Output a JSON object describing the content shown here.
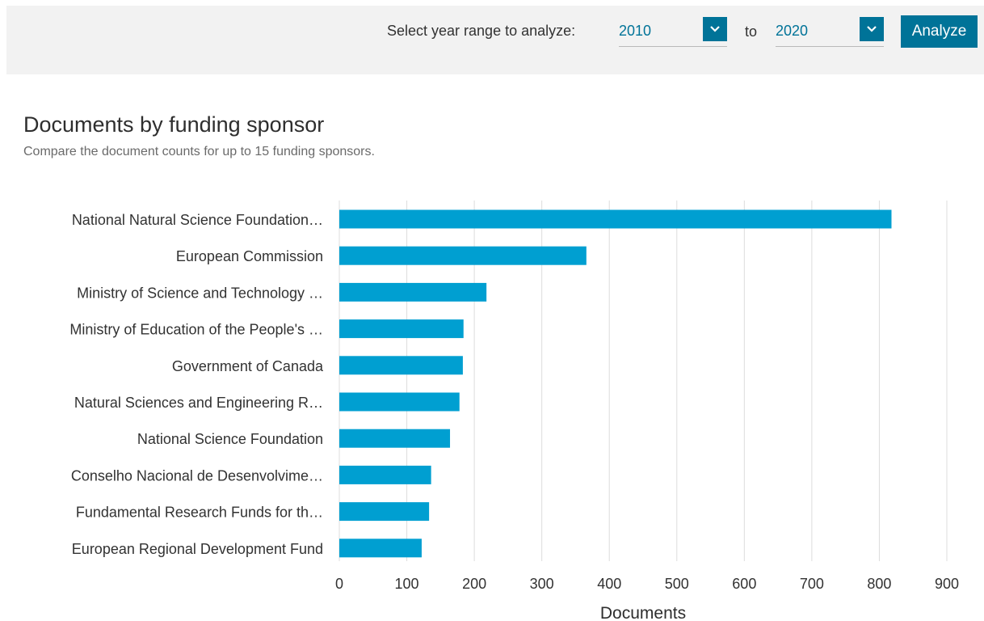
{
  "toolbar": {
    "range_label": "Select year range to analyze:",
    "from_year": "2010",
    "to_label": "to",
    "to_year": "2020",
    "analyze_label": "Analyze"
  },
  "chart_header": {
    "title": "Documents by funding sponsor",
    "subtitle": "Compare the document counts for up to 15 funding sponsors."
  },
  "colors": {
    "bar": "#009fd1",
    "accent": "#007398",
    "grid": "#dcdcdc"
  },
  "chart_data": {
    "type": "bar",
    "orientation": "horizontal",
    "title": "Documents by funding sponsor",
    "subtitle": "Compare the document counts for up to 15 funding sponsors.",
    "xlabel": "Documents",
    "ylabel": "",
    "xlim": [
      0,
      900
    ],
    "xticks": [
      0,
      100,
      200,
      300,
      400,
      500,
      600,
      700,
      800,
      900
    ],
    "grid": "vertical",
    "legend": "none",
    "categories": [
      "National Natural Science Foundation…",
      "European Commission",
      "Ministry of Science and Technology …",
      "Ministry of Education of the People's …",
      "Government of Canada",
      "Natural Sciences and Engineering R…",
      "National Science Foundation",
      "Conselho Nacional de Desenvolvime…",
      "Fundamental Research Funds for th…",
      "European Regional Development Fund"
    ],
    "values": [
      818,
      366,
      218,
      184,
      183,
      178,
      164,
      136,
      133,
      122
    ]
  }
}
